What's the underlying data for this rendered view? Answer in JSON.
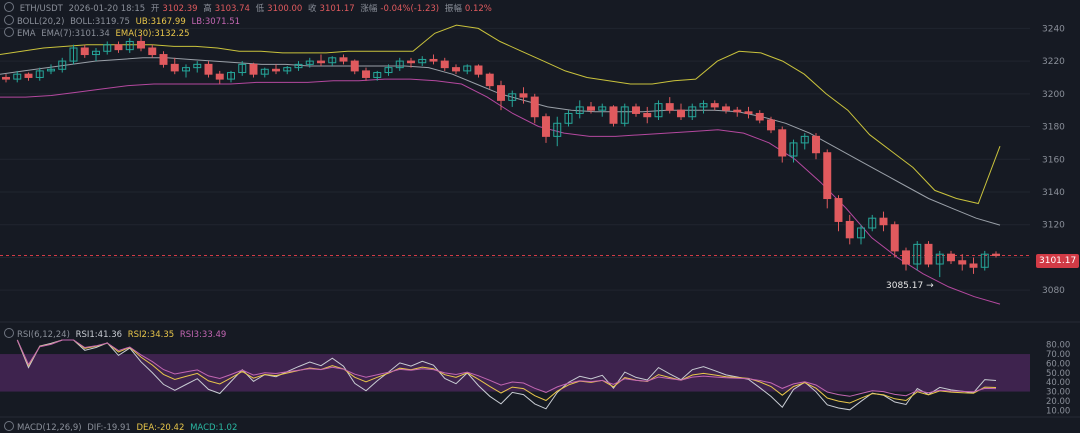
{
  "header": {
    "symbol": "ETH/USDT",
    "datetime": "2026-01-20 18:15",
    "open_label": "开",
    "open": "3102.39",
    "high_label": "高",
    "high": "3103.74",
    "low_label": "低",
    "low": "3100.00",
    "close_label": "收",
    "close": "3101.17",
    "change_label": "涨幅",
    "change": "-0.04%(-1.23)",
    "amp_label": "振幅",
    "amp": "0.12%"
  },
  "boll": {
    "name": "BOLL(20,2)",
    "mid": "BOLL:3119.75",
    "ub": "UB:3167.99",
    "lb": "LB:3071.51"
  },
  "ema": {
    "name": "EMA",
    "ema7": "EMA(7):3101.34",
    "ema30": "EMA(30):3132.25"
  },
  "rsi": {
    "name": "RSI(6,12,24)",
    "rsi1": "RSI1:41.36",
    "rsi2": "RSI2:34.35",
    "rsi3": "RSI3:33.49"
  },
  "macd": {
    "name": "MACD(12,26,9)",
    "dif": "DIF:-19.91",
    "dea": "DEA:-20.42",
    "macd": "MACD:1.02"
  },
  "last_price": "3101.17",
  "low_annotation": "3085.17 →",
  "colors": {
    "up": "#26a69a",
    "down": "#e05a5e",
    "ub": "#c9c23c",
    "mid": "#9aa0a8",
    "lb": "#b4489f",
    "ema7": "#c9c23c",
    "rsi_band": "#5a2a6b"
  },
  "chart_data": [
    {
      "type": "candlestick",
      "title": "ETH/USDT",
      "y_ticks": [
        3240,
        3220,
        3200,
        3180,
        3160,
        3140,
        3120,
        3100,
        3080
      ],
      "ylim": [
        3063,
        3250
      ],
      "candles": [
        [
          3210,
          3212,
          3207,
          3209
        ],
        [
          3209,
          3214,
          3207,
          3212
        ],
        [
          3212,
          3213,
          3208,
          3210
        ],
        [
          3210,
          3216,
          3208,
          3214
        ],
        [
          3214,
          3218,
          3212,
          3215
        ],
        [
          3215,
          3222,
          3213,
          3220
        ],
        [
          3220,
          3230,
          3218,
          3228
        ],
        [
          3228,
          3230,
          3222,
          3224
        ],
        [
          3224,
          3228,
          3220,
          3226
        ],
        [
          3226,
          3232,
          3224,
          3230
        ],
        [
          3230,
          3232,
          3225,
          3227
        ],
        [
          3227,
          3234,
          3225,
          3232
        ],
        [
          3232,
          3236,
          3226,
          3228
        ],
        [
          3228,
          3230,
          3222,
          3224
        ],
        [
          3224,
          3226,
          3216,
          3218
        ],
        [
          3218,
          3222,
          3212,
          3214
        ],
        [
          3214,
          3218,
          3210,
          3216
        ],
        [
          3216,
          3220,
          3213,
          3218
        ],
        [
          3218,
          3220,
          3210,
          3212
        ],
        [
          3212,
          3214,
          3206,
          3209
        ],
        [
          3209,
          3214,
          3207,
          3213
        ],
        [
          3213,
          3220,
          3211,
          3218
        ],
        [
          3218,
          3219,
          3210,
          3212
        ],
        [
          3212,
          3216,
          3210,
          3215
        ],
        [
          3215,
          3218,
          3212,
          3214
        ],
        [
          3214,
          3217,
          3212,
          3216
        ],
        [
          3216,
          3220,
          3214,
          3218
        ],
        [
          3218,
          3222,
          3216,
          3220
        ],
        [
          3220,
          3224,
          3217,
          3219
        ],
        [
          3219,
          3223,
          3217,
          3222
        ],
        [
          3222,
          3224,
          3218,
          3220
        ],
        [
          3220,
          3221,
          3212,
          3214
        ],
        [
          3214,
          3216,
          3208,
          3210
        ],
        [
          3210,
          3214,
          3208,
          3213
        ],
        [
          3213,
          3218,
          3211,
          3216
        ],
        [
          3216,
          3222,
          3214,
          3220
        ],
        [
          3220,
          3222,
          3216,
          3219
        ],
        [
          3219,
          3223,
          3217,
          3221
        ],
        [
          3221,
          3224,
          3218,
          3220
        ],
        [
          3220,
          3222,
          3214,
          3216
        ],
        [
          3216,
          3218,
          3212,
          3214
        ],
        [
          3214,
          3218,
          3212,
          3217
        ],
        [
          3217,
          3218,
          3210,
          3212
        ],
        [
          3212,
          3213,
          3203,
          3205
        ],
        [
          3205,
          3208,
          3190,
          3196
        ],
        [
          3196,
          3202,
          3192,
          3200
        ],
        [
          3200,
          3204,
          3194,
          3198
        ],
        [
          3198,
          3200,
          3182,
          3186
        ],
        [
          3186,
          3188,
          3170,
          3174
        ],
        [
          3174,
          3186,
          3168,
          3182
        ],
        [
          3182,
          3190,
          3180,
          3188
        ],
        [
          3188,
          3196,
          3185,
          3192
        ],
        [
          3192,
          3195,
          3188,
          3190
        ],
        [
          3190,
          3194,
          3186,
          3192
        ],
        [
          3192,
          3193,
          3180,
          3182
        ],
        [
          3182,
          3194,
          3180,
          3192
        ],
        [
          3192,
          3194,
          3186,
          3188
        ],
        [
          3188,
          3192,
          3182,
          3186
        ],
        [
          3186,
          3196,
          3184,
          3194
        ],
        [
          3194,
          3198,
          3188,
          3190
        ],
        [
          3190,
          3194,
          3184,
          3186
        ],
        [
          3186,
          3194,
          3184,
          3192
        ],
        [
          3192,
          3196,
          3188,
          3194
        ],
        [
          3194,
          3196,
          3190,
          3192
        ],
        [
          3192,
          3194,
          3188,
          3190
        ],
        [
          3190,
          3192,
          3186,
          3189
        ],
        [
          3189,
          3192,
          3185,
          3188
        ],
        [
          3188,
          3190,
          3182,
          3184
        ],
        [
          3184,
          3186,
          3176,
          3178
        ],
        [
          3178,
          3180,
          3158,
          3162
        ],
        [
          3162,
          3172,
          3158,
          3170
        ],
        [
          3170,
          3176,
          3166,
          3174
        ],
        [
          3174,
          3176,
          3160,
          3164
        ],
        [
          3164,
          3166,
          3130,
          3136
        ],
        [
          3136,
          3138,
          3116,
          3122
        ],
        [
          3122,
          3126,
          3108,
          3112
        ],
        [
          3112,
          3120,
          3108,
          3118
        ],
        [
          3118,
          3126,
          3116,
          3124
        ],
        [
          3124,
          3128,
          3116,
          3120
        ],
        [
          3120,
          3122,
          3100,
          3104
        ],
        [
          3104,
          3106,
          3092,
          3096
        ],
        [
          3096,
          3110,
          3092,
          3108
        ],
        [
          3108,
          3110,
          3094,
          3096
        ],
        [
          3096,
          3104,
          3088,
          3102
        ],
        [
          3102,
          3104,
          3096,
          3098
        ],
        [
          3098,
          3102,
          3092,
          3096
        ],
        [
          3096,
          3100,
          3090,
          3094
        ],
        [
          3094,
          3104,
          3092,
          3102
        ],
        [
          3102,
          3103.74,
          3100,
          3101.17
        ]
      ],
      "boll_ub": [
        3224,
        3226,
        3228,
        3229,
        3230,
        3230,
        3230,
        3230,
        3229,
        3229,
        3228,
        3226,
        3226,
        3225,
        3225,
        3225,
        3226,
        3226,
        3226,
        3226,
        3237,
        3242,
        3240,
        3232,
        3226,
        3220,
        3214,
        3210,
        3208,
        3206,
        3206,
        3208,
        3209,
        3220,
        3226,
        3225,
        3220,
        3212,
        3200,
        3190,
        3175,
        3165,
        3155,
        3141,
        3136,
        3133,
        3168
      ],
      "boll_mid": [
        3212,
        3214,
        3216,
        3218,
        3220,
        3221,
        3222,
        3222,
        3221,
        3220,
        3219,
        3218,
        3218,
        3217,
        3217,
        3217,
        3217,
        3217,
        3216,
        3212,
        3206,
        3200,
        3196,
        3192,
        3190,
        3189,
        3189,
        3189,
        3190,
        3190,
        3190,
        3189,
        3186,
        3182,
        3176,
        3168,
        3160,
        3152,
        3144,
        3136,
        3130,
        3124,
        3119.75
      ],
      "boll_lb": [
        3198,
        3198,
        3199,
        3201,
        3203,
        3205,
        3206,
        3206,
        3206,
        3206,
        3207,
        3207,
        3207,
        3208,
        3208,
        3209,
        3209,
        3208,
        3206,
        3198,
        3188,
        3180,
        3176,
        3174,
        3174,
        3175,
        3176,
        3177,
        3178,
        3176,
        3170,
        3160,
        3146,
        3130,
        3112,
        3100,
        3090,
        3082,
        3076,
        3071.51
      ],
      "rsi_ticks": [
        80,
        70,
        60,
        50,
        40,
        30,
        20,
        10
      ],
      "rsi_band": [
        30,
        70
      ]
    }
  ]
}
